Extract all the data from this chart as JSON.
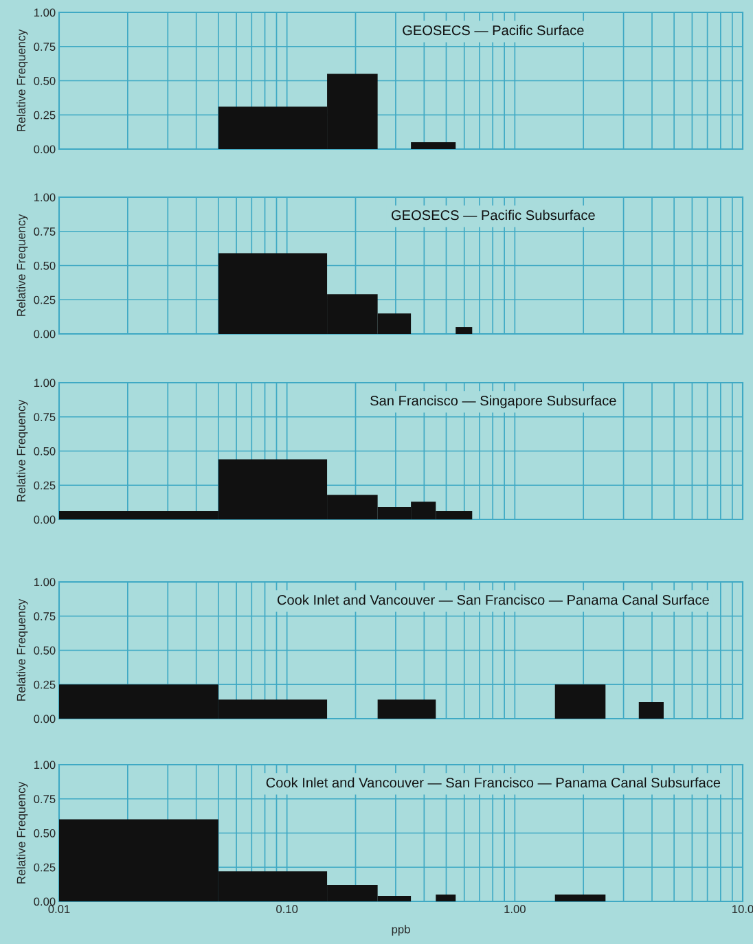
{
  "chart_data": [
    {
      "type": "histogram",
      "title": "GEOSECS — Pacific Surface",
      "ylabel": "Relative Frequency",
      "bins": [
        0.05,
        0.15,
        0.25,
        0.35,
        0.55
      ],
      "values": [
        0.31,
        0.55,
        0,
        0.05
      ],
      "color": "#111111",
      "log": "x",
      "xlim": [
        0.01,
        10
      ],
      "xticks": [
        {
          "value": 0.01,
          "label": null
        },
        {
          "value": 0.1,
          "label": null
        },
        {
          "value": 1,
          "label": null
        },
        {
          "value": 10,
          "label": null
        }
      ],
      "ylim": [
        0,
        1
      ],
      "yticks": [
        {
          "value": 0,
          "label": "0.00"
        },
        {
          "value": 0.25,
          "label": "0.25"
        },
        {
          "value": 0.5,
          "label": "0.50"
        },
        {
          "value": 0.75,
          "label": "0.75"
        },
        {
          "value": 1,
          "label": "1.00"
        }
      ],
      "grid": true,
      "tick_labels": "y"
    },
    {
      "type": "histogram",
      "title": "GEOSECS — Pacific Subsurface",
      "ylabel": "Relative Frequency",
      "bins": [
        0.05,
        0.15,
        0.25,
        0.35,
        0.55,
        0.65
      ],
      "values": [
        0.59,
        0.29,
        0.15,
        0,
        0.05
      ],
      "color": "#111111",
      "log": "x",
      "xlim": [
        0.01,
        10
      ],
      "xticks": [
        {
          "value": 0.01,
          "label": null
        },
        {
          "value": 0.1,
          "label": null
        },
        {
          "value": 1,
          "label": null
        },
        {
          "value": 10,
          "label": null
        }
      ],
      "ylim": [
        0,
        1
      ],
      "yticks": [
        {
          "value": 0,
          "label": "0.00"
        },
        {
          "value": 0.25,
          "label": "0.25"
        },
        {
          "value": 0.5,
          "label": "0.50"
        },
        {
          "value": 0.75,
          "label": "0.75"
        },
        {
          "value": 1,
          "label": "1.00"
        }
      ],
      "grid": true,
      "tick_labels": "y"
    },
    {
      "type": "histogram",
      "title": "San Francisco — Singapore Subsurface",
      "ylabel": "Relative Frequency",
      "bins": [
        0.01,
        0.05,
        0.15,
        0.25,
        0.35,
        0.45,
        0.65
      ],
      "values": [
        0.06,
        0.44,
        0.18,
        0.09,
        0.13,
        0.06
      ],
      "color": "#111111",
      "log": "x",
      "xlim": [
        0.01,
        10
      ],
      "xticks": [
        {
          "value": 0.01,
          "label": null
        },
        {
          "value": 0.1,
          "label": null
        },
        {
          "value": 1,
          "label": null
        },
        {
          "value": 10,
          "label": null
        }
      ],
      "ylim": [
        0,
        1
      ],
      "yticks": [
        {
          "value": 0,
          "label": "0.00"
        },
        {
          "value": 0.25,
          "label": "0.25"
        },
        {
          "value": 0.5,
          "label": "0.50"
        },
        {
          "value": 0.75,
          "label": "0.75"
        },
        {
          "value": 1,
          "label": "1.00"
        }
      ],
      "grid": true,
      "tick_labels": "y"
    },
    {
      "type": "histogram",
      "title": "Cook Inlet and Vancouver — San Francisco — Panama Canal Surface",
      "ylabel": "Relative Frequency",
      "bins": [
        0.01,
        0.05,
        0.15,
        0.25,
        0.45,
        1.5,
        2.5,
        3.5,
        4.5
      ],
      "values": [
        0.25,
        0.14,
        0,
        0.14,
        0,
        0.25,
        0,
        0.12
      ],
      "color": "#111111",
      "log": "x",
      "xlim": [
        0.01,
        10
      ],
      "xticks": [
        {
          "value": 0.01,
          "label": null
        },
        {
          "value": 0.1,
          "label": null
        },
        {
          "value": 1,
          "label": null
        },
        {
          "value": 10,
          "label": null
        }
      ],
      "ylim": [
        0,
        1
      ],
      "yticks": [
        {
          "value": 0,
          "label": "0.00"
        },
        {
          "value": 0.25,
          "label": "0.25"
        },
        {
          "value": 0.5,
          "label": "0.50"
        },
        {
          "value": 0.75,
          "label": "0.75"
        },
        {
          "value": 1,
          "label": "1.00"
        }
      ],
      "grid": true,
      "tick_labels": "y"
    },
    {
      "type": "histogram",
      "title": "Cook Inlet and Vancouver — San Francisco — Panama Canal Subsurface",
      "ylabel": "Relative Frequency",
      "xlabel": "ppb",
      "bins": [
        0.01,
        0.05,
        0.15,
        0.25,
        0.35,
        0.45,
        0.55,
        1.5,
        2.5
      ],
      "values": [
        0.6,
        0.22,
        0.12,
        0.04,
        0,
        0.05,
        0,
        0.05
      ],
      "color": "#111111",
      "log": "x",
      "xlim": [
        0.01,
        10
      ],
      "xticks": [
        {
          "value": 0.01,
          "label": "0.01"
        },
        {
          "value": 0.1,
          "label": "0.10"
        },
        {
          "value": 1,
          "label": "1.00"
        },
        {
          "value": 10,
          "label": "10.0"
        }
      ],
      "ylim": [
        0,
        1
      ],
      "yticks": [
        {
          "value": 0,
          "label": "0.00"
        },
        {
          "value": 0.25,
          "label": "0.25"
        },
        {
          "value": 0.5,
          "label": "0.50"
        },
        {
          "value": 0.75,
          "label": "0.75"
        },
        {
          "value": 1,
          "label": "1.00"
        }
      ],
      "grid": true
    }
  ]
}
